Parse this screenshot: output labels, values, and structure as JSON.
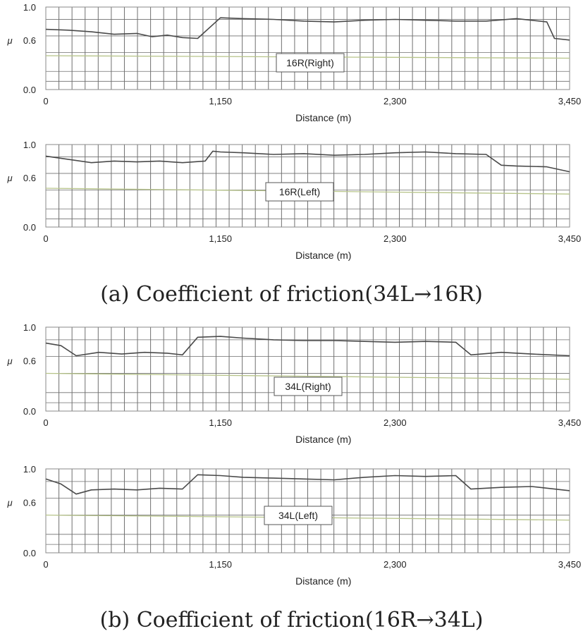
{
  "captions": {
    "a": "(a) Coefficient of friction(34L→16R)",
    "b": "(b) Coefficient of friction(16R→34L)"
  },
  "colors": {
    "trace": "#4a4a4a",
    "threshold": "#b7c48a",
    "grid": "#6f6f6f",
    "frame": "#8a8a8a"
  },
  "chart_data": [
    {
      "type": "line",
      "label_box": "16R(Right)",
      "xlabel": "Distance  (m)",
      "ylabel": "μ",
      "xlim": [
        0,
        3450
      ],
      "ylim": [
        0,
        1.0
      ],
      "x_ticks": [
        0,
        1150,
        2300,
        3450
      ],
      "x_tick_labels": [
        "0",
        "1,150",
        "2,300",
        "3,450"
      ],
      "y_ticks": [
        0.0,
        0.6,
        1.0
      ],
      "y_tick_labels": [
        "0.0",
        "0.6",
        "1.0"
      ],
      "grid": true,
      "series": [
        {
          "role": "measured",
          "x": [
            0,
            150,
            300,
            450,
            600,
            700,
            800,
            900,
            1000,
            1150,
            1300,
            1500,
            1700,
            1900,
            2100,
            2300,
            2500,
            2700,
            2900,
            3100,
            3300,
            3350,
            3450
          ],
          "y": [
            0.73,
            0.72,
            0.7,
            0.67,
            0.68,
            0.64,
            0.66,
            0.63,
            0.62,
            0.87,
            0.86,
            0.85,
            0.83,
            0.82,
            0.84,
            0.85,
            0.84,
            0.83,
            0.83,
            0.86,
            0.82,
            0.62,
            0.6
          ]
        },
        {
          "role": "threshold",
          "x": [
            0,
            3450
          ],
          "y": [
            0.41,
            0.38
          ]
        }
      ]
    },
    {
      "type": "line",
      "label_box": "16R(Left)",
      "xlabel": "Distance  (m)",
      "ylabel": "μ",
      "xlim": [
        0,
        3450
      ],
      "ylim": [
        0,
        1.0
      ],
      "x_ticks": [
        0,
        1150,
        2300,
        3450
      ],
      "x_tick_labels": [
        "0",
        "1,150",
        "2,300",
        "3,450"
      ],
      "y_ticks": [
        0.0,
        0.6,
        1.0
      ],
      "y_tick_labels": [
        "0.0",
        "0.6",
        "1.0"
      ],
      "grid": true,
      "series": [
        {
          "role": "measured",
          "x": [
            0,
            150,
            300,
            450,
            600,
            750,
            900,
            1050,
            1100,
            1150,
            1300,
            1500,
            1700,
            1900,
            2100,
            2300,
            2500,
            2700,
            2900,
            3000,
            3100,
            3300,
            3450
          ],
          "y": [
            0.86,
            0.82,
            0.78,
            0.8,
            0.79,
            0.8,
            0.78,
            0.8,
            0.92,
            0.91,
            0.9,
            0.88,
            0.89,
            0.87,
            0.88,
            0.9,
            0.91,
            0.89,
            0.88,
            0.75,
            0.74,
            0.73,
            0.67
          ]
        },
        {
          "role": "threshold",
          "x": [
            0,
            3450
          ],
          "y": [
            0.47,
            0.4
          ]
        }
      ]
    },
    {
      "type": "line",
      "label_box": "34L(Right)",
      "xlabel": "Distance  (m)",
      "ylabel": "μ",
      "xlim": [
        0,
        3450
      ],
      "ylim": [
        0,
        1.0
      ],
      "x_ticks": [
        0,
        1150,
        2300,
        3450
      ],
      "x_tick_labels": [
        "0",
        "1,150",
        "2,300",
        "3,450"
      ],
      "y_ticks": [
        0.0,
        0.6,
        1.0
      ],
      "y_tick_labels": [
        "0.0",
        "0.6",
        "1.0"
      ],
      "grid": true,
      "series": [
        {
          "role": "measured",
          "x": [
            0,
            100,
            200,
            350,
            500,
            650,
            800,
            900,
            1000,
            1150,
            1300,
            1500,
            1700,
            1900,
            2100,
            2300,
            2500,
            2700,
            2800,
            3000,
            3200,
            3450
          ],
          "y": [
            0.81,
            0.78,
            0.66,
            0.7,
            0.68,
            0.7,
            0.69,
            0.67,
            0.88,
            0.89,
            0.87,
            0.85,
            0.84,
            0.84,
            0.83,
            0.82,
            0.83,
            0.82,
            0.67,
            0.7,
            0.68,
            0.66
          ]
        },
        {
          "role": "threshold",
          "x": [
            0,
            3450
          ],
          "y": [
            0.45,
            0.38
          ]
        }
      ]
    },
    {
      "type": "line",
      "label_box": "34L(Left)",
      "xlabel": "Distance  (m)",
      "ylabel": "μ",
      "xlim": [
        0,
        3450
      ],
      "ylim": [
        0,
        1.0
      ],
      "x_ticks": [
        0,
        1150,
        2300,
        3450
      ],
      "x_tick_labels": [
        "0",
        "1,150",
        "2,300",
        "3,450"
      ],
      "y_ticks": [
        0.0,
        0.6,
        1.0
      ],
      "y_tick_labels": [
        "0.0",
        "0.6",
        "1.0"
      ],
      "grid": true,
      "series": [
        {
          "role": "measured",
          "x": [
            0,
            100,
            200,
            300,
            450,
            600,
            750,
            900,
            1000,
            1150,
            1300,
            1500,
            1700,
            1900,
            2100,
            2300,
            2500,
            2700,
            2800,
            3000,
            3200,
            3450
          ],
          "y": [
            0.88,
            0.82,
            0.7,
            0.75,
            0.76,
            0.75,
            0.77,
            0.76,
            0.93,
            0.92,
            0.9,
            0.89,
            0.88,
            0.87,
            0.9,
            0.92,
            0.91,
            0.92,
            0.76,
            0.78,
            0.79,
            0.74
          ]
        },
        {
          "role": "threshold",
          "x": [
            0,
            3450
          ],
          "y": [
            0.45,
            0.39
          ]
        }
      ]
    }
  ]
}
